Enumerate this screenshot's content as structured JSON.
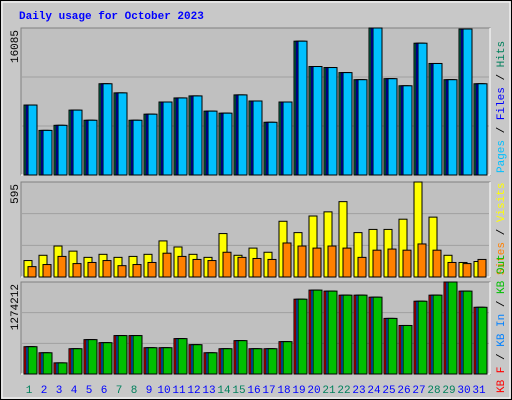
{
  "title": "Daily usage for October 2023",
  "legend_separator": " / ",
  "chart_data": [
    {
      "type": "bar",
      "ylim": [
        0,
        16085
      ],
      "yticks": [
        16085
      ],
      "legend_order": "reverse",
      "series": [
        {
          "name": "Hits",
          "color": "#00805c",
          "values": [
            7654,
            4881,
            5436,
            7100,
            5990,
            9984,
            8985,
            5990,
            6656,
            7987,
            8431,
            8653,
            6989,
            6767,
            8764,
            8098,
            5768,
            7987,
            14643,
            11870,
            11759,
            11204,
            10428,
            16085,
            10538,
            9762,
            14421,
            12202,
            10428,
            15974,
            9984
          ]
        },
        {
          "name": "Files",
          "color": "#0000ff",
          "values": [
            7654,
            4881,
            5436,
            7100,
            5990,
            9984,
            8985,
            5990,
            6656,
            7987,
            8431,
            8653,
            6989,
            6767,
            8764,
            8098,
            5768,
            7987,
            14643,
            11870,
            11759,
            11204,
            10428,
            16085,
            10538,
            9762,
            14421,
            12202,
            10428,
            15974,
            9984
          ]
        },
        {
          "name": "Pages",
          "color": "#00c0ff",
          "values": [
            7654,
            4881,
            5436,
            7100,
            5990,
            9984,
            8985,
            5990,
            6656,
            7987,
            8431,
            8653,
            6989,
            6767,
            8764,
            8098,
            5768,
            7987,
            14643,
            11870,
            11759,
            11204,
            10428,
            16085,
            10538,
            9762,
            14421,
            12202,
            10428,
            15974,
            9984
          ]
        }
      ]
    },
    {
      "type": "bar",
      "ylim": [
        0,
        595
      ],
      "yticks": [
        595
      ],
      "legend_order": "reverse",
      "series": [
        {
          "name": "Visits",
          "color": "#ffff00",
          "values": [
            103,
            136,
            194,
            162,
            123,
            142,
            123,
            129,
            142,
            226,
            188,
            142,
            123,
            272,
            136,
            181,
            155,
            349,
            278,
            382,
            408,
            472,
            278,
            298,
            298,
            362,
            595,
            375,
            136,
            91,
            97
          ]
        },
        {
          "name": "Sites",
          "color": "#ff8000",
          "values": [
            65,
            78,
            129,
            84,
            91,
            103,
            71,
            78,
            91,
            149,
            129,
            110,
            103,
            155,
            123,
            116,
            110,
            213,
            194,
            181,
            194,
            181,
            123,
            168,
            175,
            168,
            207,
            168,
            91,
            84,
            110
          ]
        }
      ]
    },
    {
      "type": "bar",
      "ylim": [
        0,
        1274212
      ],
      "yticks": [
        1274212
      ],
      "legend_order": "forward",
      "categories": [
        "1",
        "2",
        "3",
        "4",
        "5",
        "6",
        "7",
        "8",
        "9",
        "10",
        "11",
        "12",
        "13",
        "14",
        "15",
        "16",
        "17",
        "18",
        "19",
        "20",
        "21",
        "22",
        "23",
        "24",
        "25",
        "26",
        "27",
        "28",
        "29",
        "30",
        "31"
      ],
      "highlight_categories": [
        0,
        6,
        7,
        13,
        14,
        20,
        21,
        27,
        28
      ],
      "category_color": "#0000ff",
      "highlight_color": "#00805c",
      "series": [
        {
          "name": "KB F",
          "color": "#ff0000",
          "values": [
            378000,
            294000,
            154000,
            350000,
            476000,
            434000,
            532000,
            532000,
            364000,
            364000,
            490000,
            406000,
            294000,
            350000,
            462000,
            350000,
            350000,
            448000,
            1036000,
            1162000,
            1148000,
            1092000,
            1092000,
            1064000,
            770000,
            672000,
            1008000,
            1092000,
            1274212,
            1148000,
            924000
          ]
        },
        {
          "name": "KB In",
          "color": "#0080ff",
          "values": [
            378000,
            294000,
            154000,
            350000,
            476000,
            434000,
            532000,
            532000,
            364000,
            364000,
            490000,
            406000,
            294000,
            350000,
            462000,
            350000,
            350000,
            448000,
            1036000,
            1162000,
            1148000,
            1092000,
            1092000,
            1064000,
            770000,
            672000,
            1008000,
            1092000,
            1274212,
            1148000,
            924000
          ]
        },
        {
          "name": "KB Out",
          "color": "#00c000",
          "values": [
            378000,
            294000,
            154000,
            350000,
            476000,
            434000,
            532000,
            532000,
            364000,
            364000,
            490000,
            406000,
            294000,
            350000,
            462000,
            350000,
            350000,
            448000,
            1036000,
            1162000,
            1148000,
            1092000,
            1092000,
            1064000,
            770000,
            672000,
            1008000,
            1092000,
            1274212,
            1148000,
            924000
          ]
        }
      ]
    }
  ]
}
